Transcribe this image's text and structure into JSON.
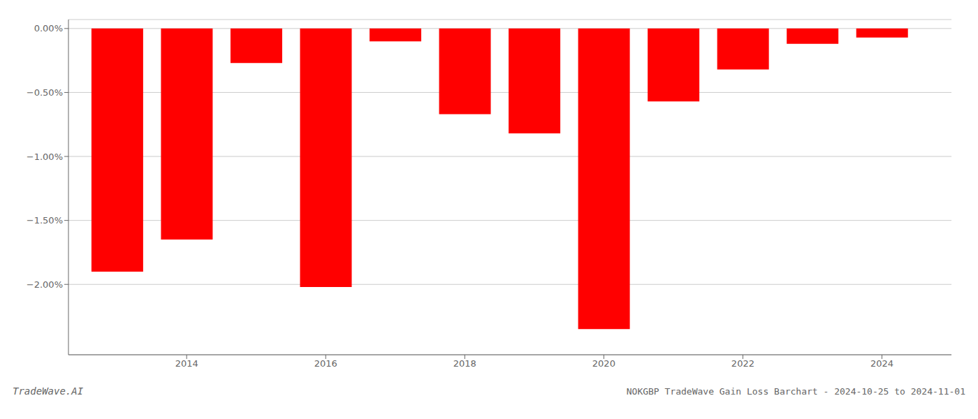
{
  "chart_data": {
    "type": "bar",
    "title": "NOKGBP TradeWave Gain Loss Barchart - 2024-10-25 to 2024-11-01",
    "annotations": [
      "TradeWave.AI"
    ],
    "x": [
      2013,
      2014,
      2015,
      2016,
      2017,
      2018,
      2019,
      2020,
      2021,
      2022,
      2023,
      2024
    ],
    "values": [
      -1.9,
      -1.65,
      -0.27,
      -2.02,
      -0.1,
      -0.67,
      -0.82,
      -2.35,
      -0.57,
      -0.32,
      -0.12,
      -0.07
    ],
    "color": "#ff0000",
    "xlim": [
      2012.3,
      2025.0
    ],
    "xticks": [
      2014,
      2016,
      2018,
      2020,
      2022,
      2024
    ],
    "ylim": [
      -2.55,
      0.07
    ],
    "yticks": [
      {
        "value": 0.0,
        "label": "0.00%"
      },
      {
        "value": -0.5,
        "label": "−0.50%"
      },
      {
        "value": -1.0,
        "label": "−1.00%"
      },
      {
        "value": -1.5,
        "label": "−1.50%"
      },
      {
        "value": -2.0,
        "label": "−2.00%"
      }
    ],
    "grid": true
  }
}
